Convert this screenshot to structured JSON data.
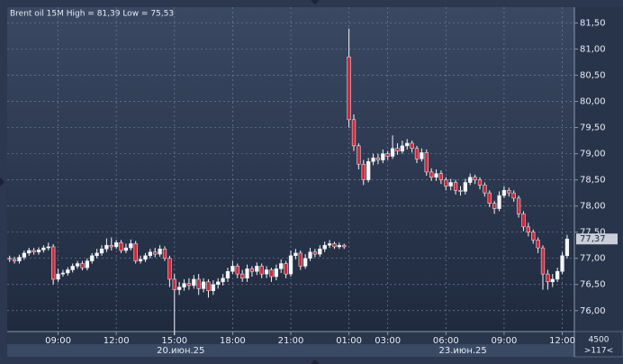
{
  "chart_data": {
    "type": "candlestick",
    "title": "Brent oil 15M High = 81,39 Low = 75,53",
    "open": [
      77.0,
      76.98,
      76.95,
      77.02,
      77.1,
      77.15,
      77.12,
      77.16,
      77.2,
      77.22,
      76.6,
      76.7,
      76.72,
      76.78,
      76.85,
      76.9,
      76.82,
      76.95,
      77.05,
      77.1,
      77.18,
      77.25,
      77.22,
      77.3,
      77.15,
      77.2,
      77.28,
      76.95,
      76.98,
      77.05,
      77.12,
      77.08,
      77.18,
      77.0,
      76.6,
      76.4,
      76.45,
      76.52,
      76.48,
      76.6,
      76.42,
      76.55,
      76.38,
      76.5,
      76.55,
      76.62,
      76.75,
      76.85,
      76.7,
      76.62,
      76.8,
      76.75,
      76.85,
      76.7,
      76.78,
      76.65,
      76.8,
      76.9,
      76.7,
      77.05,
      77.1,
      76.85,
      77.0,
      77.12,
      77.08,
      77.18,
      77.25,
      77.28,
      77.22,
      77.25,
      80.85,
      79.65,
      79.15,
      78.8,
      78.5,
      78.85,
      78.92,
      78.88,
      79.0,
      78.95,
      79.1,
      79.05,
      79.15,
      79.2,
      79.1,
      78.9,
      79.02,
      78.65,
      78.55,
      78.62,
      78.5,
      78.38,
      78.45,
      78.3,
      78.28,
      78.45,
      78.55,
      78.5,
      78.4,
      78.25,
      78.05,
      77.95,
      78.2,
      78.3,
      78.25,
      78.15,
      77.85,
      77.6,
      77.5,
      77.35,
      77.2,
      76.7,
      76.55,
      76.6,
      76.75,
      77.05
    ],
    "high": [
      77.05,
      77.03,
      77.07,
      77.15,
      77.2,
      77.2,
      77.21,
      77.25,
      77.3,
      77.27,
      76.8,
      76.78,
      76.83,
      76.9,
      76.95,
      76.95,
      77.0,
      77.1,
      77.18,
      77.25,
      77.38,
      77.4,
      77.35,
      77.35,
      77.28,
      77.36,
      77.33,
      77.05,
      77.1,
      77.18,
      77.2,
      77.25,
      77.23,
      77.05,
      76.7,
      76.55,
      76.6,
      76.62,
      76.68,
      76.7,
      76.62,
      76.6,
      76.58,
      76.62,
      76.7,
      76.82,
      76.95,
      76.9,
      76.78,
      76.88,
      76.85,
      76.92,
      76.9,
      76.85,
      76.82,
      76.88,
      76.98,
      76.95,
      77.15,
      77.18,
      77.15,
      77.08,
      77.2,
      77.18,
      77.25,
      77.32,
      77.35,
      77.32,
      77.3,
      77.28,
      81.39,
      79.75,
      79.2,
      78.88,
      78.92,
      79.0,
      79.0,
      79.08,
      79.05,
      79.35,
      79.2,
      79.25,
      79.28,
      79.25,
      79.15,
      79.1,
      79.08,
      78.72,
      78.7,
      78.68,
      78.55,
      78.52,
      78.5,
      78.38,
      78.52,
      78.62,
      78.6,
      78.55,
      78.45,
      78.3,
      78.1,
      78.28,
      78.38,
      78.35,
      78.3,
      78.2,
      77.9,
      77.68,
      77.55,
      77.4,
      77.25,
      76.78,
      76.7,
      76.82,
      77.12,
      77.45
    ],
    "low": [
      76.93,
      76.9,
      76.9,
      76.97,
      77.05,
      77.07,
      77.07,
      77.11,
      77.15,
      76.5,
      76.55,
      76.65,
      76.67,
      76.73,
      76.8,
      76.77,
      76.77,
      76.9,
      77.0,
      77.05,
      77.12,
      77.15,
      77.18,
      77.1,
      77.1,
      77.15,
      76.9,
      76.9,
      76.93,
      77.0,
      77.02,
      77.03,
      76.95,
      76.45,
      75.53,
      76.3,
      76.38,
      76.4,
      76.42,
      76.3,
      76.35,
      76.25,
      76.3,
      76.42,
      76.48,
      76.55,
      76.7,
      76.62,
      76.55,
      76.55,
      76.65,
      76.68,
      76.62,
      76.62,
      76.55,
      76.58,
      76.72,
      76.62,
      76.65,
      76.98,
      76.78,
      76.8,
      76.95,
      77.02,
      77.03,
      77.12,
      77.2,
      77.18,
      77.18,
      77.18,
      79.5,
      79.05,
      78.7,
      78.4,
      78.45,
      78.78,
      78.8,
      78.82,
      78.88,
      78.9,
      78.98,
      79.0,
      79.08,
      79.02,
      78.82,
      78.85,
      78.58,
      78.48,
      78.48,
      78.42,
      78.3,
      78.3,
      78.22,
      78.2,
      78.22,
      78.4,
      78.42,
      78.32,
      78.18,
      77.98,
      77.85,
      77.9,
      78.15,
      78.18,
      78.08,
      77.78,
      77.52,
      77.42,
      77.28,
      77.1,
      76.4,
      76.4,
      76.45,
      76.55,
      76.7,
      77.0
    ],
    "close": [
      76.98,
      76.95,
      77.02,
      77.1,
      77.15,
      77.12,
      77.16,
      77.2,
      77.22,
      76.6,
      76.7,
      76.72,
      76.78,
      76.85,
      76.9,
      76.82,
      76.95,
      77.05,
      77.1,
      77.18,
      77.25,
      77.22,
      77.3,
      77.15,
      77.2,
      77.28,
      76.95,
      76.98,
      77.05,
      77.12,
      77.08,
      77.18,
      77.0,
      76.6,
      76.4,
      76.45,
      76.52,
      76.48,
      76.6,
      76.42,
      76.55,
      76.38,
      76.5,
      76.55,
      76.62,
      76.75,
      76.85,
      76.7,
      76.62,
      76.8,
      76.75,
      76.85,
      76.7,
      76.78,
      76.65,
      76.8,
      76.9,
      76.7,
      77.05,
      77.1,
      76.85,
      77.0,
      77.12,
      77.08,
      77.18,
      77.25,
      77.28,
      77.22,
      77.25,
      77.22,
      79.65,
      79.15,
      78.8,
      78.5,
      78.85,
      78.92,
      78.88,
      79.0,
      78.95,
      79.1,
      79.05,
      79.15,
      79.2,
      79.1,
      78.9,
      79.02,
      78.65,
      78.55,
      78.62,
      78.5,
      78.38,
      78.45,
      78.3,
      78.28,
      78.45,
      78.55,
      78.5,
      78.4,
      78.25,
      78.05,
      77.95,
      78.2,
      78.3,
      78.25,
      78.15,
      77.85,
      77.6,
      77.5,
      77.35,
      77.2,
      76.7,
      76.55,
      76.6,
      76.75,
      77.05,
      77.37
    ],
    "up_color": "#f4f6fa",
    "down_color": "#d0283a",
    "xlim": [
      -0.5,
      116.5
    ],
    "xticks": [
      {
        "value": 10,
        "label": "09:00"
      },
      {
        "value": 22,
        "label": "12:00"
      },
      {
        "value": 34,
        "label": "15:00"
      },
      {
        "value": 46,
        "label": "18:00"
      },
      {
        "value": 58,
        "label": "21:00"
      },
      {
        "value": 70,
        "label": "01:00"
      },
      {
        "value": 78,
        "label": "03:00"
      },
      {
        "value": 90,
        "label": "06:00"
      },
      {
        "value": 102,
        "label": "09:00"
      },
      {
        "value": 114,
        "label": "12:00"
      }
    ],
    "date_ticks": [
      {
        "value": 35.3,
        "label": "20.июн.25"
      },
      {
        "value": 93.5,
        "label": "23.июн.25"
      }
    ],
    "ylim": [
      75.6,
      81.8
    ],
    "yticks": [
      {
        "value": 76,
        "label": "76,00"
      },
      {
        "value": 76.5,
        "label": "76,50"
      },
      {
        "value": 77,
        "label": "77,00"
      },
      {
        "value": 77.5,
        "label": "77,50"
      },
      {
        "value": 78,
        "label": "78,00"
      },
      {
        "value": 78.5,
        "label": "78,50"
      },
      {
        "value": 79,
        "label": "79,00"
      },
      {
        "value": 79.5,
        "label": "79,50"
      },
      {
        "value": 80,
        "label": "80,00"
      },
      {
        "value": 80.5,
        "label": "80,50"
      },
      {
        "value": 81,
        "label": "81,00"
      },
      {
        "value": 81.5,
        "label": "81,50"
      }
    ],
    "last_price": {
      "value": 77.37,
      "label": "77,37"
    },
    "grid": true,
    "corner_box": [
      "4500",
      ">117<"
    ]
  }
}
